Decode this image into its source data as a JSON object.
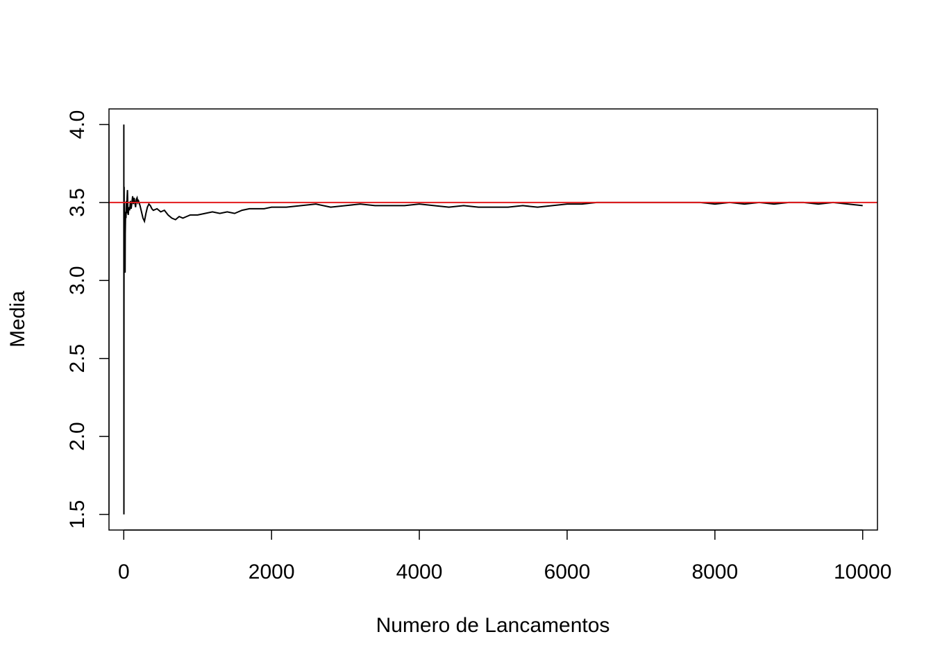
{
  "chart_data": {
    "type": "line",
    "xlabel": "Numero de Lancamentos",
    "ylabel": "Media",
    "xlim": [
      -200,
      10200
    ],
    "ylim": [
      1.4,
      4.1
    ],
    "x_ticks": [
      0,
      2000,
      4000,
      6000,
      8000,
      10000
    ],
    "x_tick_labels": [
      "0",
      "2000",
      "4000",
      "6000",
      "8000",
      "10000"
    ],
    "y_ticks": [
      1.5,
      2.0,
      2.5,
      3.0,
      3.5,
      4.0
    ],
    "y_tick_labels": [
      "1.5",
      "2.0",
      "2.5",
      "3.0",
      "3.5",
      "4.0"
    ],
    "grid": false,
    "series": [
      {
        "color": "#000000",
        "x": [
          1,
          2,
          3,
          4,
          5,
          6,
          8,
          10,
          12,
          15,
          18,
          20,
          25,
          30,
          35,
          40,
          45,
          50,
          55,
          60,
          70,
          80,
          90,
          100,
          110,
          120,
          130,
          140,
          150,
          160,
          170,
          180,
          190,
          200,
          220,
          240,
          260,
          280,
          300,
          320,
          340,
          360,
          380,
          400,
          450,
          500,
          550,
          600,
          650,
          700,
          750,
          800,
          850,
          900,
          1000,
          1100,
          1200,
          1300,
          1400,
          1500,
          1600,
          1700,
          1800,
          1900,
          2000,
          2200,
          2400,
          2600,
          2800,
          3000,
          3200,
          3400,
          3600,
          3800,
          4000,
          4200,
          4400,
          4600,
          4800,
          5000,
          5200,
          5400,
          5600,
          5800,
          6000,
          6200,
          6400,
          6600,
          6800,
          7000,
          7200,
          7400,
          7600,
          7800,
          8000,
          8200,
          8400,
          8600,
          8800,
          9000,
          9200,
          9400,
          9600,
          9800,
          10000
        ],
        "y": [
          4.0,
          1.5,
          2.83,
          3.25,
          3.6,
          3.33,
          3.5,
          3.3,
          3.25,
          3.13,
          3.05,
          3.3,
          3.44,
          3.4,
          3.51,
          3.43,
          3.53,
          3.58,
          3.47,
          3.42,
          3.47,
          3.45,
          3.51,
          3.46,
          3.5,
          3.54,
          3.49,
          3.53,
          3.5,
          3.47,
          3.52,
          3.53,
          3.5,
          3.51,
          3.48,
          3.44,
          3.4,
          3.38,
          3.43,
          3.47,
          3.49,
          3.48,
          3.46,
          3.45,
          3.46,
          3.44,
          3.45,
          3.42,
          3.4,
          3.39,
          3.41,
          3.4,
          3.41,
          3.42,
          3.42,
          3.43,
          3.44,
          3.43,
          3.44,
          3.43,
          3.45,
          3.46,
          3.46,
          3.46,
          3.47,
          3.47,
          3.48,
          3.49,
          3.47,
          3.48,
          3.49,
          3.48,
          3.48,
          3.48,
          3.49,
          3.48,
          3.47,
          3.48,
          3.47,
          3.47,
          3.47,
          3.48,
          3.47,
          3.48,
          3.49,
          3.49,
          3.5,
          3.5,
          3.5,
          3.5,
          3.5,
          3.5,
          3.5,
          3.5,
          3.49,
          3.5,
          3.49,
          3.5,
          3.49,
          3.5,
          3.5,
          3.49,
          3.5,
          3.49,
          3.48
        ]
      }
    ],
    "reference_line": {
      "y": 3.5,
      "color": "#e31a1c"
    }
  }
}
